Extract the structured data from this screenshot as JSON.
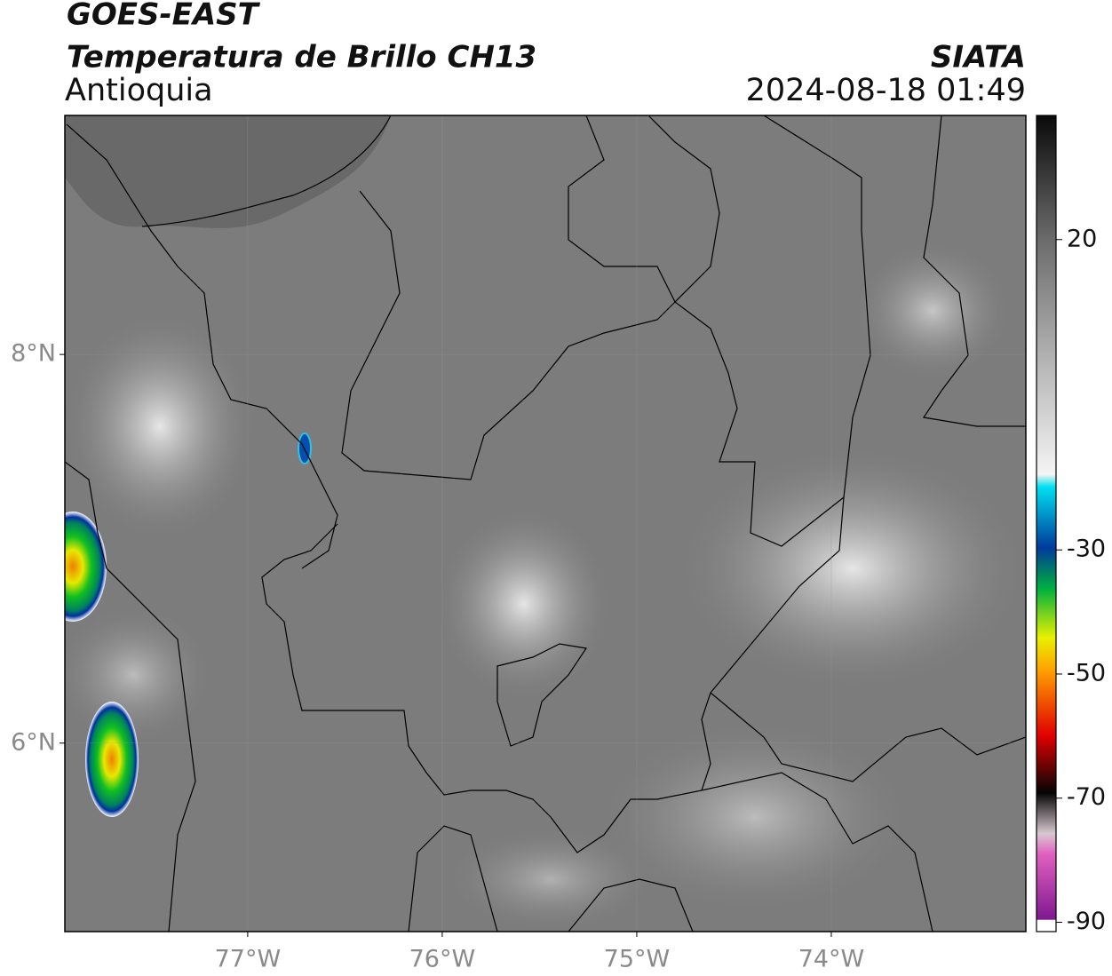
{
  "header": {
    "title": "GOES-EAST",
    "product": "Temperatura de Brillo CH13",
    "region": "Antioquia",
    "source": "SIATA",
    "timestamp": "2024-08-18 01:49"
  },
  "map": {
    "xlim": [
      -77.94,
      -73.0
    ],
    "ylim": [
      5.03,
      9.23
    ],
    "xticks": [
      {
        "value": -77,
        "label": "77°W"
      },
      {
        "value": -76,
        "label": "76°W"
      },
      {
        "value": -75,
        "label": "75°W"
      },
      {
        "value": -74,
        "label": "74°W"
      }
    ],
    "yticks": [
      {
        "value": 8,
        "label": "8°N"
      },
      {
        "value": 6,
        "label": "6°N"
      }
    ]
  },
  "colorbar": {
    "lim": [
      -91.5,
      40
    ],
    "ticks": [
      20,
      -30,
      -50,
      -70,
      -90
    ]
  }
}
